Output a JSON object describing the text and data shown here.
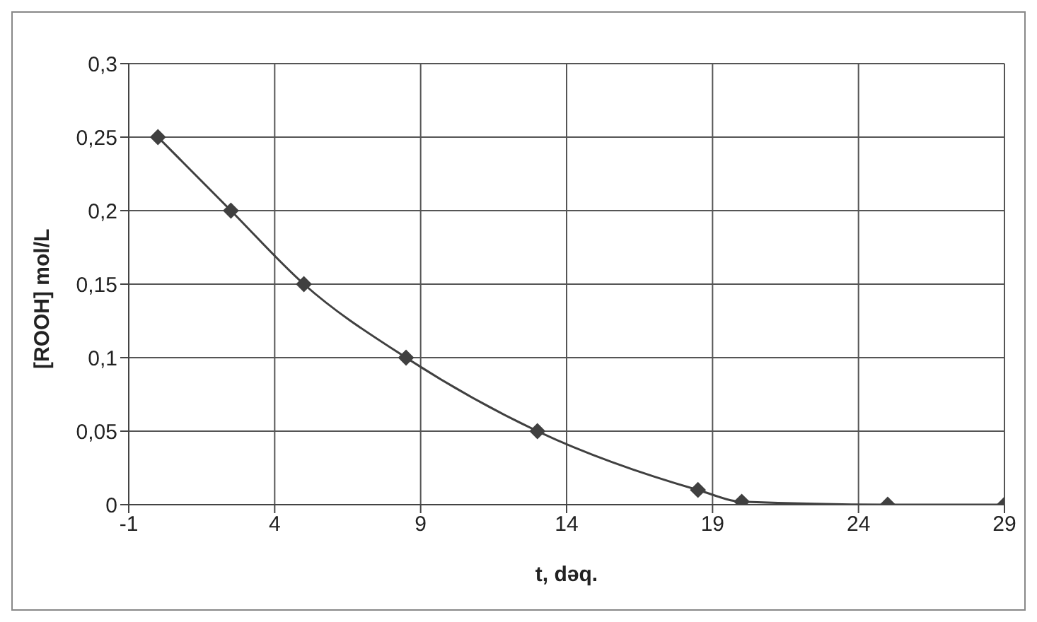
{
  "chart_data": {
    "type": "line",
    "xlabel": "t, dəq.",
    "ylabel": "[ROOH] mol/L",
    "x": [
      0,
      2.5,
      5,
      8.5,
      13,
      18.5,
      20,
      25,
      29
    ],
    "series": [
      {
        "color": "#404040",
        "values": [
          0.25,
          0.2,
          0.15,
          0.1,
          0.05,
          0.01,
          0.002,
          0,
          0
        ]
      }
    ],
    "xlim": [
      -1,
      29
    ],
    "xticks": [
      -1,
      4,
      9,
      14,
      19,
      24,
      29
    ],
    "ylim": [
      0,
      0.3
    ],
    "yticks": [
      0,
      {
        "value": 0.05,
        "label": "0,05"
      },
      {
        "value": 0.1,
        "label": "0,1"
      },
      {
        "value": 0.15,
        "label": "0,15"
      },
      {
        "value": 0.2,
        "label": "0,2"
      },
      {
        "value": 0.25,
        "label": "0,25"
      },
      {
        "value": 0.3,
        "label": "0,3"
      }
    ],
    "grid": true,
    "marker": "diamond",
    "line_style": "solid"
  }
}
